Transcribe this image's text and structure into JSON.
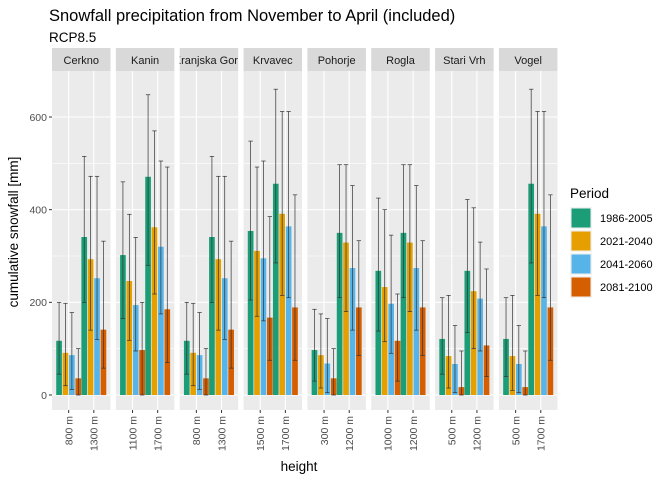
{
  "chart_data": {
    "type": "bar",
    "title": "Snowfall precipitation from November to April (included)",
    "subtitle": "RCP8.5",
    "xlabel": "height",
    "ylabel": "cumulative snowfall [mm]",
    "ylim": [
      0,
      700
    ],
    "yticks": [
      0,
      200,
      400,
      600
    ],
    "grid": true,
    "legend": {
      "title": "Period",
      "position": "right",
      "entries": [
        "1986-2005",
        "2021-2040",
        "2041-2060",
        "2081-2100"
      ]
    },
    "colors": {
      "1986-2005": "#1b9e77",
      "2021-2040": "#e69f00",
      "2041-2060": "#56b4e9",
      "2081-2100": "#d55e00"
    },
    "panels": [
      {
        "name": "Cerkno",
        "strip_label": "Cerkno",
        "categories": [
          "800 m",
          "1300 m"
        ],
        "series": [
          {
            "name": "1986-2005",
            "values": [
              117,
              341
            ],
            "lower": [
              45,
              200
            ],
            "upper": [
              200,
              515
            ]
          },
          {
            "name": "2021-2040",
            "values": [
              91,
              293
            ],
            "lower": [
              20,
              140
            ],
            "upper": [
              198,
              472
            ]
          },
          {
            "name": "2041-2060",
            "values": [
              86,
              252
            ],
            "lower": [
              12,
              120
            ],
            "upper": [
              178,
              472
            ]
          },
          {
            "name": "2081-2100",
            "values": [
              36,
              141
            ],
            "lower": [
              0,
              58
            ],
            "upper": [
              100,
              332
            ]
          }
        ]
      },
      {
        "name": "Kanin",
        "strip_label": "Kanin",
        "categories": [
          "1100 m",
          "1700 m"
        ],
        "series": [
          {
            "name": "1986-2005",
            "values": [
              302,
              471
            ],
            "lower": [
              165,
              280
            ],
            "upper": [
              460,
              648
            ]
          },
          {
            "name": "2021-2040",
            "values": [
              246,
              362
            ],
            "lower": [
              118,
              218
            ],
            "upper": [
              390,
              570
            ]
          },
          {
            "name": "2041-2060",
            "values": [
              194,
              320
            ],
            "lower": [
              95,
              175
            ],
            "upper": [
              340,
              505
            ]
          },
          {
            "name": "2081-2100",
            "values": [
              97,
              185
            ],
            "lower": [
              0,
              70
            ],
            "upper": [
              200,
              492
            ]
          }
        ]
      },
      {
        "name": "Kranjska Gora",
        "strip_label": "Kranjska Gora",
        "categories": [
          "800 m",
          "1300 m"
        ],
        "series": [
          {
            "name": "1986-2005",
            "values": [
              117,
              341
            ],
            "lower": [
              45,
              200
            ],
            "upper": [
              200,
              515
            ]
          },
          {
            "name": "2021-2040",
            "values": [
              91,
              293
            ],
            "lower": [
              20,
              140
            ],
            "upper": [
              198,
              472
            ]
          },
          {
            "name": "2041-2060",
            "values": [
              86,
              252
            ],
            "lower": [
              12,
              120
            ],
            "upper": [
              178,
              472
            ]
          },
          {
            "name": "2081-2100",
            "values": [
              36,
              141
            ],
            "lower": [
              0,
              58
            ],
            "upper": [
              100,
              332
            ]
          }
        ]
      },
      {
        "name": "Krvavec",
        "strip_label": "Krvavec",
        "categories": [
          "1500 m",
          "1700 m"
        ],
        "series": [
          {
            "name": "1986-2005",
            "values": [
              354,
              456
            ],
            "lower": [
              205,
              285
            ],
            "upper": [
              548,
              660
            ]
          },
          {
            "name": "2021-2040",
            "values": [
              311,
              391
            ],
            "lower": [
              170,
              215
            ],
            "upper": [
              492,
              612
            ]
          },
          {
            "name": "2041-2060",
            "values": [
              295,
              364
            ],
            "lower": [
              160,
              210
            ],
            "upper": [
              505,
              612
            ]
          },
          {
            "name": "2081-2100",
            "values": [
              167,
              189
            ],
            "lower": [
              75,
              75
            ],
            "upper": [
              385,
              432
            ]
          }
        ]
      },
      {
        "name": "Pohorje",
        "strip_label": "Pohorje",
        "categories": [
          "300 m",
          "1200 m"
        ],
        "series": [
          {
            "name": "1986-2005",
            "values": [
              97,
              350
            ],
            "lower": [
              30,
              210
            ],
            "upper": [
              185,
              497
            ]
          },
          {
            "name": "2021-2040",
            "values": [
              86,
              329
            ],
            "lower": [
              15,
              180
            ],
            "upper": [
              175,
              497
            ]
          },
          {
            "name": "2041-2060",
            "values": [
              68,
              274
            ],
            "lower": [
              5,
              140
            ],
            "upper": [
              165,
              452
            ]
          },
          {
            "name": "2081-2100",
            "values": [
              36,
              189
            ],
            "lower": [
              0,
              85
            ],
            "upper": [
              100,
              333
            ]
          }
        ]
      },
      {
        "name": "Rogla",
        "strip_label": "Rogla",
        "categories": [
          "1000 m",
          "1200 m"
        ],
        "series": [
          {
            "name": "1986-2005",
            "values": [
              268,
              350
            ],
            "lower": [
              138,
              210
            ],
            "upper": [
              425,
              497
            ]
          },
          {
            "name": "2021-2040",
            "values": [
              233,
              329
            ],
            "lower": [
              115,
              180
            ],
            "upper": [
              400,
              497
            ]
          },
          {
            "name": "2041-2060",
            "values": [
              197,
              274
            ],
            "lower": [
              90,
              140
            ],
            "upper": [
              345,
              452
            ]
          },
          {
            "name": "2081-2100",
            "values": [
              117,
              189
            ],
            "lower": [
              30,
              85
            ],
            "upper": [
              218,
              333
            ]
          }
        ]
      },
      {
        "name": "Stari Vrh",
        "strip_label": "Stari Vrh",
        "categories": [
          "500 m",
          "1200 m"
        ],
        "series": [
          {
            "name": "1986-2005",
            "values": [
              121,
              268
            ],
            "lower": [
              45,
              135
            ],
            "upper": [
              210,
              422
            ]
          },
          {
            "name": "2021-2040",
            "values": [
              84,
              224
            ],
            "lower": [
              15,
              100
            ],
            "upper": [
              215,
              404
            ]
          },
          {
            "name": "2041-2060",
            "values": [
              67,
              208
            ],
            "lower": [
              5,
              95
            ],
            "upper": [
              150,
              330
            ]
          },
          {
            "name": "2081-2100",
            "values": [
              17,
              107
            ],
            "lower": [
              0,
              40
            ],
            "upper": [
              95,
              272
            ]
          }
        ]
      },
      {
        "name": "Vogel",
        "strip_label": "Vogel",
        "categories": [
          "500 m",
          "1700 m"
        ],
        "series": [
          {
            "name": "1986-2005",
            "values": [
              121,
              456
            ],
            "lower": [
              40,
              285
            ],
            "upper": [
              210,
              660
            ]
          },
          {
            "name": "2021-2040",
            "values": [
              84,
              391
            ],
            "lower": [
              10,
              215
            ],
            "upper": [
              215,
              612
            ]
          },
          {
            "name": "2041-2060",
            "values": [
              67,
              364
            ],
            "lower": [
              5,
              210
            ],
            "upper": [
              150,
              612
            ]
          },
          {
            "name": "2081-2100",
            "values": [
              17,
              189
            ],
            "lower": [
              0,
              75
            ],
            "upper": [
              95,
              432
            ]
          }
        ]
      }
    ]
  }
}
